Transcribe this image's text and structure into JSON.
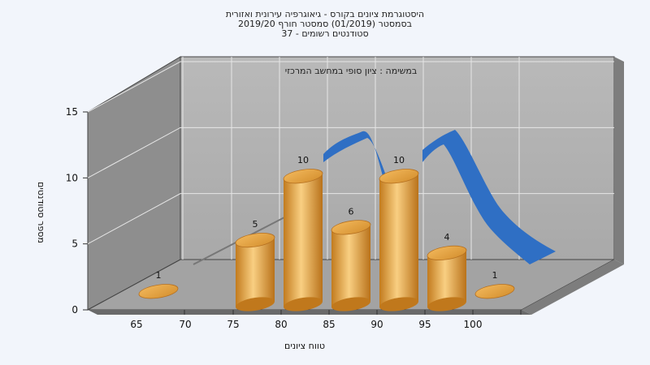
{
  "chart_data": {
    "type": "bar",
    "title_lines": [
      "היסטוגרמת ציונים בקורס - גיאוגרפיה עירונית ואזורית",
      "בסמסטר  (01/2019)  סמסטר חורף 2019/20",
      "סטודנטים רשומים - 37"
    ],
    "subtitle": "במשימה : ציון סופי במחשב המרכזי",
    "xlabel": "טווח ציונים",
    "ylabel": "מספר סטודנטים",
    "x_ticks": [
      "65",
      "70",
      "75",
      "80",
      "85",
      "90",
      "95",
      "100"
    ],
    "y_ticks": [
      "0",
      "5",
      "10",
      "15"
    ],
    "ylim": [
      0,
      15
    ],
    "categories": [
      "65",
      "75",
      "80",
      "85",
      "90",
      "95",
      "100"
    ],
    "values": [
      1,
      5,
      10,
      6,
      10,
      4,
      1
    ],
    "data_labels": [
      "1",
      "5",
      "10",
      "6",
      "10",
      "4",
      "1"
    ],
    "grid": true,
    "bar_color": "#e0a040",
    "curve_color": "#2f6fc4",
    "wall_color": "#b3b3b3",
    "side_wall_color": "#8f8f8f",
    "floor_color": "#a6a6a6"
  }
}
